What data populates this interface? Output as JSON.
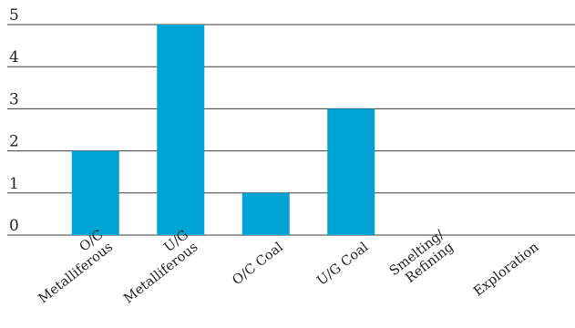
{
  "colors": {
    "bar": "#00a3d3",
    "gridline": "#3a3a3a",
    "text": "#222222",
    "background": "#ffffff"
  },
  "chart_data": {
    "type": "bar",
    "title": "",
    "xlabel": "",
    "ylabel": "",
    "categories": [
      [
        "O/C",
        "Metalliferous"
      ],
      [
        "U/G",
        "Metalliferous"
      ],
      [
        "O/C Coal"
      ],
      [
        "U/G Coal"
      ],
      [
        "Smelting/",
        "Refining"
      ],
      [
        "Exploration"
      ]
    ],
    "values": [
      2,
      5,
      1,
      3,
      0,
      0
    ],
    "ylim": [
      0,
      5
    ],
    "yticks": [
      0,
      1,
      2,
      3,
      4,
      5
    ],
    "grid": true,
    "legend": "none"
  }
}
